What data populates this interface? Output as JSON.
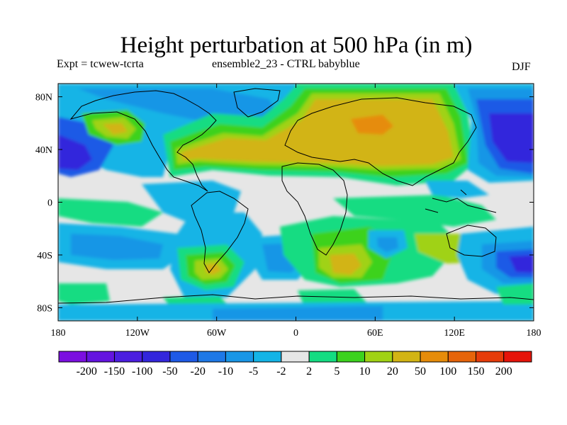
{
  "header": {
    "title": "Height perturbation at 500 hPa (in m)",
    "experiment": "Expt = tcwew-tcrta",
    "ensemble": "ensemble2_23 - CTRL babyblue",
    "season": "DJF"
  },
  "axes": {
    "y_ticks": [
      {
        "lat": 80,
        "label": "80N"
      },
      {
        "lat": 40,
        "label": "40N"
      },
      {
        "lat": 0,
        "label": "0"
      },
      {
        "lat": -40,
        "label": "40S"
      },
      {
        "lat": -80,
        "label": "80S"
      }
    ],
    "x_ticks": [
      {
        "lon": -180,
        "label": "180"
      },
      {
        "lon": -120,
        "label": "120W"
      },
      {
        "lon": -60,
        "label": "60W"
      },
      {
        "lon": 0,
        "label": "0"
      },
      {
        "lon": 60,
        "label": "60E"
      },
      {
        "lon": 120,
        "label": "120E"
      },
      {
        "lon": 180,
        "label": "180"
      }
    ],
    "lon_range": [
      -180,
      180
    ],
    "lat_range": [
      -90,
      90
    ]
  },
  "colorbar": {
    "levels": [
      "-200",
      "-150",
      "-100",
      "-50",
      "-20",
      "-10",
      "-5",
      "-2",
      "2",
      "5",
      "10",
      "20",
      "50",
      "100",
      "150",
      "200"
    ],
    "colors": [
      "#7b0fe0",
      "#6414e0",
      "#4b1ee0",
      "#3326dc",
      "#1e5ae6",
      "#1e78e6",
      "#1996e6",
      "#14b4e6",
      "#e6e6e6",
      "#14dc82",
      "#3cd21e",
      "#a0d214",
      "#d2b414",
      "#e68c0a",
      "#e6640a",
      "#e63c0a",
      "#e6140a"
    ]
  },
  "colors": {
    "background": "#e6e6e6",
    "coastline": "#000000"
  }
}
